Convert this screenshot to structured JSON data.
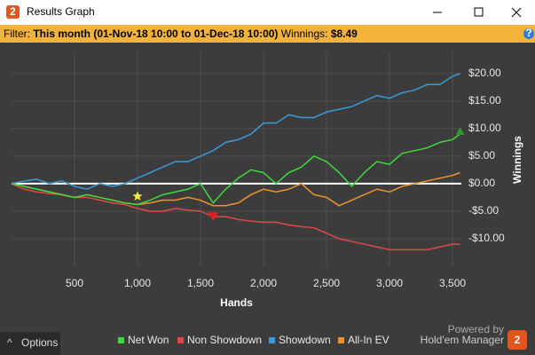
{
  "window": {
    "title": "Results Graph",
    "icon": "2"
  },
  "filter": {
    "label": "Filter:",
    "value": "This month (01-Nov-18 10:00 to 01-Dec-18 10:00)",
    "winnings_label": "Winnings:",
    "winnings": "$8.49",
    "help": "?"
  },
  "footer": {
    "options": "Options",
    "powered_by": "Powered by",
    "brand": "Hold'em Manager",
    "logo": "2"
  },
  "chart_data": {
    "type": "line",
    "x_label": "Hands",
    "y_label": "Winnings",
    "x": [
      0,
      100,
      200,
      300,
      400,
      500,
      600,
      700,
      800,
      900,
      1000,
      1100,
      1200,
      1300,
      1400,
      1500,
      1600,
      1700,
      1800,
      1900,
      2000,
      2100,
      2200,
      2300,
      2400,
      2500,
      2600,
      2700,
      2800,
      2900,
      3000,
      3100,
      3200,
      3300,
      3400,
      3500,
      3560
    ],
    "series": [
      {
        "name": "Net Won",
        "color": "#3fd83f",
        "values": [
          0,
          -0.5,
          -1,
          -1.5,
          -2,
          -2.5,
          -2,
          -2.5,
          -3,
          -3.5,
          -3.8,
          -3,
          -2,
          -1.5,
          -1,
          0,
          -3.5,
          -1,
          1,
          2.5,
          2,
          0,
          2,
          3,
          5,
          4,
          2,
          -0.5,
          2,
          4,
          3.5,
          5.5,
          6,
          6.5,
          7.5,
          8,
          9
        ]
      },
      {
        "name": "Non Showdown",
        "color": "#e04848",
        "values": [
          0,
          -1,
          -1.5,
          -1.8,
          -2,
          -2.5,
          -2.5,
          -3,
          -3.5,
          -3.8,
          -4.5,
          -5,
          -5,
          -4.5,
          -4.8,
          -5,
          -6,
          -6,
          -6.5,
          -6.8,
          -7,
          -7,
          -7.5,
          -7.8,
          -8,
          -9,
          -10,
          -10.5,
          -11,
          -11.5,
          -12,
          -12,
          -12,
          -12,
          -11.5,
          -11,
          -11
        ]
      },
      {
        "name": "Showdown",
        "color": "#3a9ad9",
        "values": [
          0,
          0.5,
          0.8,
          0,
          0.5,
          -0.5,
          -1,
          0,
          -0.5,
          0,
          1,
          2,
          3,
          4,
          4,
          5,
          6,
          7.5,
          8,
          9,
          11,
          11,
          12.5,
          12,
          12,
          13,
          13.5,
          14,
          15,
          16,
          15.5,
          16.5,
          17,
          18,
          18,
          19.5,
          20
        ]
      },
      {
        "name": "All-In EV",
        "color": "#f0922a",
        "values": [
          0,
          -0.5,
          -1,
          -1.5,
          -2,
          -2.5,
          -2,
          -2.5,
          -3,
          -3.5,
          -3.8,
          -3.5,
          -3,
          -3,
          -2.5,
          -3,
          -4,
          -4,
          -3.5,
          -2,
          -1,
          -1.5,
          -1,
          0,
          -2,
          -2.5,
          -4,
          -3,
          -2,
          -1,
          -1.5,
          -0.5,
          0,
          0.5,
          1,
          1.5,
          2
        ]
      }
    ],
    "markers": [
      {
        "x": 1000,
        "y": -2.3,
        "shape": "star",
        "color": "#f5e642"
      },
      {
        "x": 1600,
        "y": -6,
        "shape": "triangle-down",
        "color": "#e02020"
      },
      {
        "x": 3560,
        "y": 9.5,
        "shape": "triangle-up",
        "color": "#2a9a2a"
      }
    ],
    "xlim": [
      0,
      3570
    ],
    "ylim": [
      -15,
      24
    ],
    "xticks": [
      {
        "value": 500,
        "label": "500"
      },
      {
        "value": 1000,
        "label": "1,000"
      },
      {
        "value": 1500,
        "label": "1,500"
      },
      {
        "value": 2000,
        "label": "2,000"
      },
      {
        "value": 2500,
        "label": "2,500"
      },
      {
        "value": 3000,
        "label": "3,000"
      },
      {
        "value": 3500,
        "label": "3,500"
      }
    ],
    "yticks": [
      {
        "value": -10,
        "label": "-$10.00"
      },
      {
        "value": -5,
        "label": "-$5.00"
      },
      {
        "value": 0,
        "label": "$0.00"
      },
      {
        "value": 5,
        "label": "$5.00"
      },
      {
        "value": 10,
        "label": "$10.00"
      },
      {
        "value": 15,
        "label": "$15.00"
      },
      {
        "value": 20,
        "label": "$20.00"
      }
    ],
    "grid": true,
    "zero_line": true,
    "legend": "bottom"
  }
}
